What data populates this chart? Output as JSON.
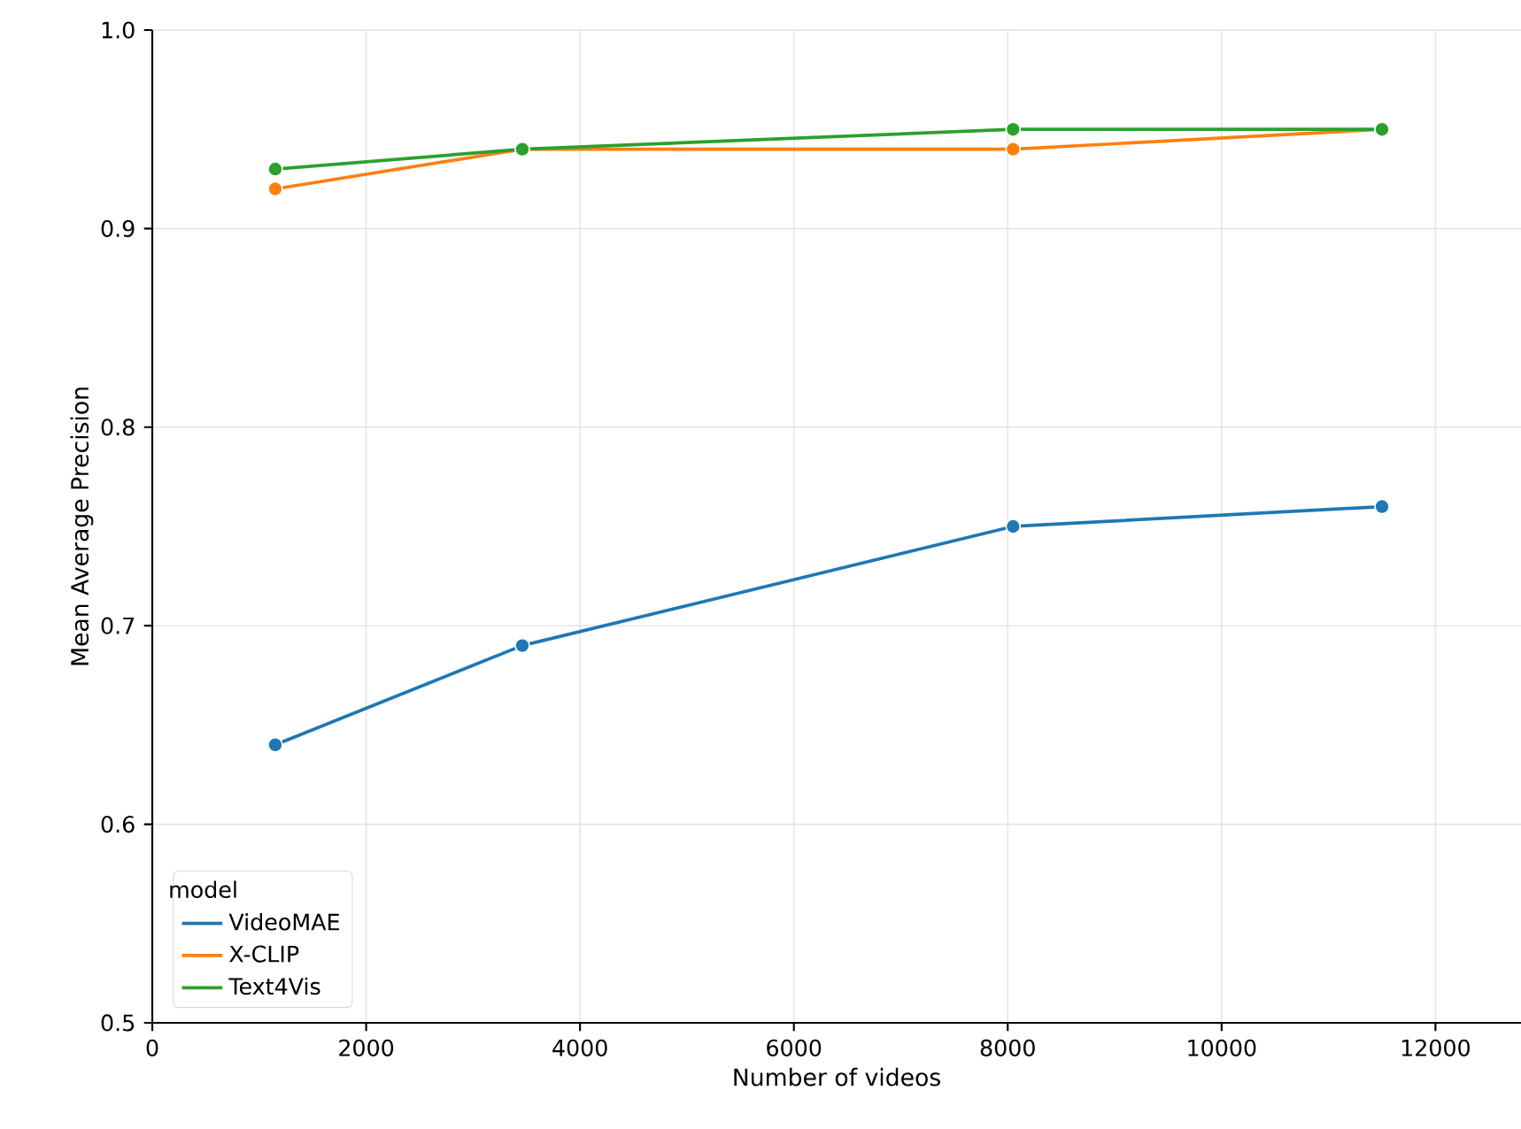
{
  "chart_data": {
    "type": "line",
    "xlabel": "Number of videos",
    "ylabel": "Mean Average Precision",
    "legend_title": "model",
    "x": [
      1150,
      3460,
      8050,
      11500
    ],
    "series": [
      {
        "name": "VideoMAE",
        "color": "#1f77b4",
        "values": [
          0.64,
          0.69,
          0.75,
          0.76
        ]
      },
      {
        "name": "X-CLIP",
        "color": "#ff7f0e",
        "values": [
          0.92,
          0.94,
          0.94,
          0.95
        ]
      },
      {
        "name": "Text4Vis",
        "color": "#2ca02c",
        "values": [
          0.93,
          0.94,
          0.95,
          0.95
        ]
      }
    ],
    "xlim": [
      0,
      12800
    ],
    "xticks": [
      0,
      2000,
      4000,
      6000,
      8000,
      10000,
      12000
    ],
    "ylim": [
      0.5,
      1.0
    ],
    "yticks": [
      0.5,
      0.6,
      0.7,
      0.8,
      0.9,
      {
        "value": 1,
        "label": "1.0"
      }
    ],
    "grid": true,
    "legend": "bottom left",
    "marker": "circle",
    "line_style": "solid"
  }
}
